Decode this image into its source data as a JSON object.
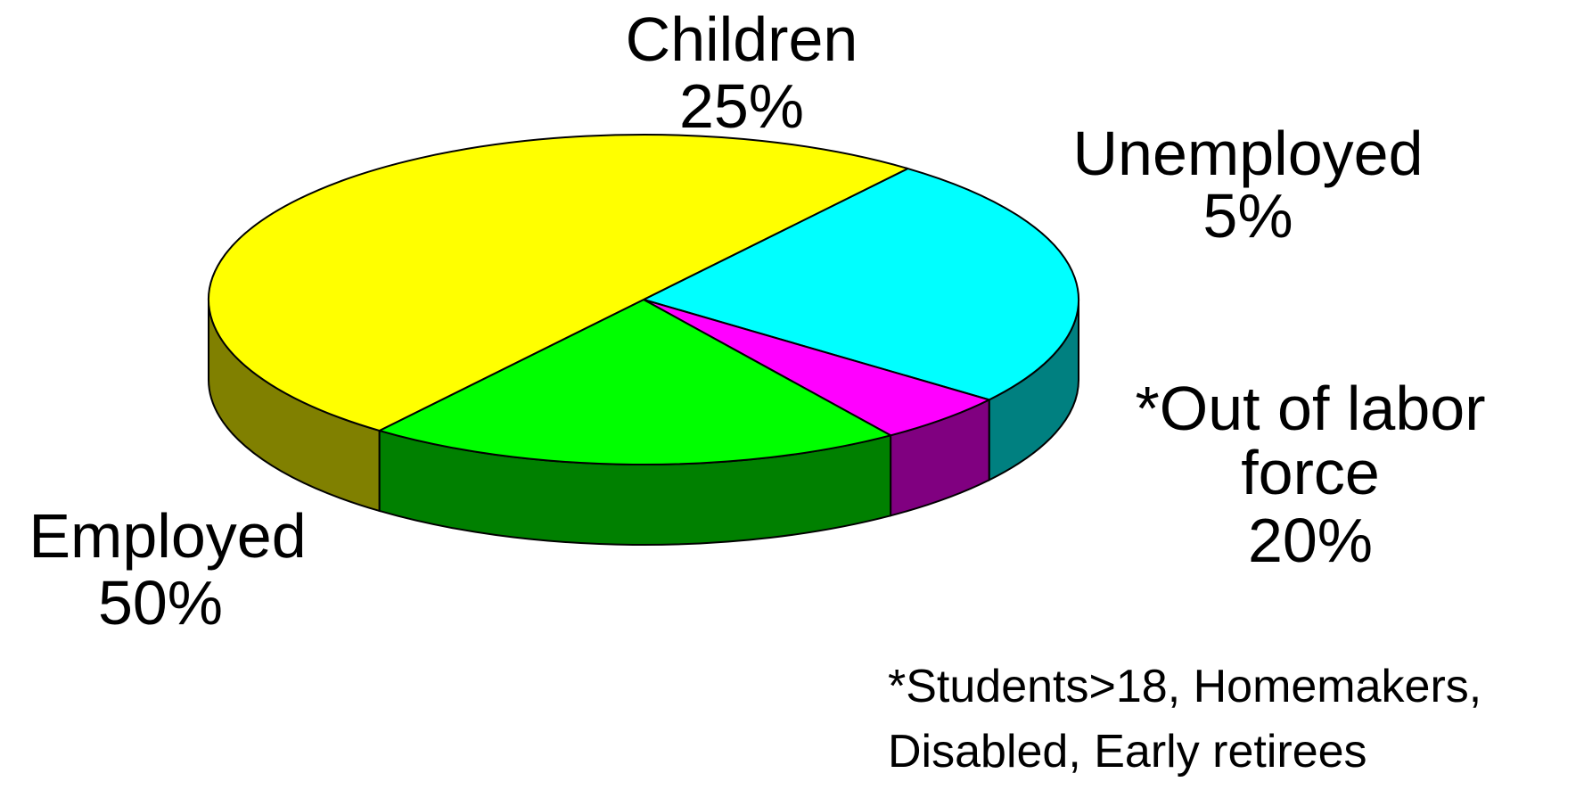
{
  "chart_data": {
    "type": "pie",
    "style": "3d",
    "slices": [
      {
        "name": "Children",
        "value": 25,
        "pct_label": "25%",
        "color": "#00FFFF",
        "side_color": "#008080"
      },
      {
        "name": "Unemployed",
        "value": 5,
        "pct_label": "5%",
        "color": "#FF00FF",
        "side_color": "#800080"
      },
      {
        "name": "*Out of labor force",
        "value": 20,
        "pct_label": "20%",
        "color": "#00FF00",
        "side_color": "#008000"
      },
      {
        "name": "Employed",
        "value": 50,
        "pct_label": "50%",
        "color": "#FFFF00",
        "side_color": "#808000"
      }
    ],
    "labels": {
      "children": {
        "line1": "Children",
        "line2": "25%"
      },
      "unemployed": {
        "line1": "Unemployed",
        "line2": "5%"
      },
      "out_of_labor": {
        "line1": "*Out of labor",
        "line2": "force",
        "line3": "20%"
      },
      "employed": {
        "line1": "Employed",
        "line2": "50%"
      }
    },
    "footnote": {
      "line1": "*Students>18,  Homemakers,",
      "line2": "Disabled, Early retirees"
    }
  }
}
